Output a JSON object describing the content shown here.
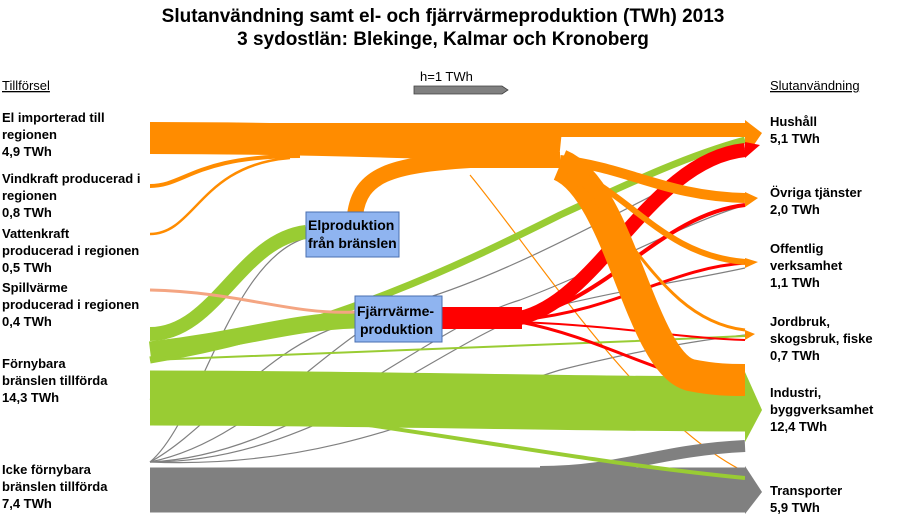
{
  "title": {
    "line1": "Slutanvändning samt el- och fjärrvärmeproduktion (TWh) 2013",
    "line2": "3 sydostlän: Blekinge, Kalmar och Kronoberg"
  },
  "headers": {
    "supply": "Tillförsel",
    "scale": "h=1 TWh",
    "use": "Slutanvändning"
  },
  "sources": [
    {
      "lines": [
        "El importerad till",
        "regionen"
      ],
      "value": "4,9 TWh"
    },
    {
      "lines": [
        "Vindkraft producerad i",
        "regionen"
      ],
      "value": "0,8 TWh"
    },
    {
      "lines": [
        "Vattenkraft",
        "producerad i regionen"
      ],
      "value": "0,5 TWh"
    },
    {
      "lines": [
        "Spillvärme",
        "producerad i regionen"
      ],
      "value": "0,4 TWh"
    },
    {
      "lines": [
        "Förnybara",
        "bränslen tillförda"
      ],
      "value": "14,3 TWh"
    },
    {
      "lines": [
        "Icke förnybara",
        "bränslen tillförda"
      ],
      "value": "7,4 TWh"
    }
  ],
  "processes": {
    "el": [
      "Elproduktion",
      "från bränslen"
    ],
    "fjv": [
      "Fjärrvärme-",
      "produktion"
    ]
  },
  "targets": [
    {
      "lines": [
        "Hushåll"
      ],
      "value": "5,1 TWh"
    },
    {
      "lines": [
        "Övriga tjänster"
      ],
      "value": "2,0 TWh"
    },
    {
      "lines": [
        "Offentlig",
        "verksamhet"
      ],
      "value": "1,1 TWh"
    },
    {
      "lines": [
        "Jordbruk,",
        "skogsbruk, fiske"
      ],
      "value": "0,7 TWh"
    },
    {
      "lines": [
        "Industri,",
        "byggverksamhet"
      ],
      "value": "12,4 TWh"
    },
    {
      "lines": [
        "Transporter"
      ],
      "value": "5,9 TWh"
    }
  ],
  "colors": {
    "electricity": "#ff8c00",
    "renewable": "#99cc33",
    "fossil": "#808080",
    "district_heat": "#ff0000",
    "waste_heat": "#f4a582",
    "process_box": "#8fb4f0"
  }
}
